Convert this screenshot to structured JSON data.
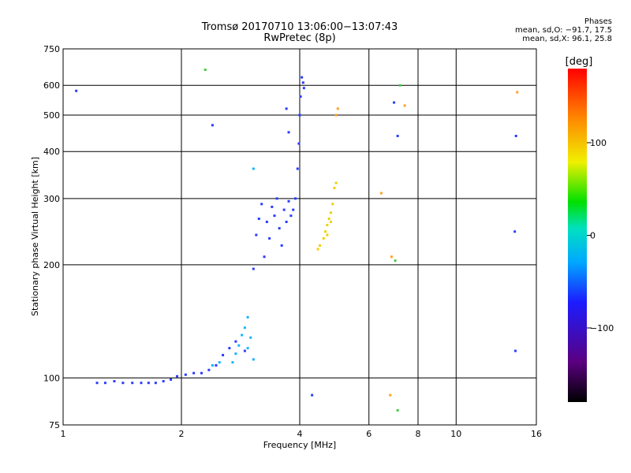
{
  "title": {
    "line1": "Tromsø 20170710 13:06:00−13:07:43",
    "line2": "RwPretec (8p)"
  },
  "phase_info": {
    "header": "Phases",
    "line_o": "mean, sd,O: −91.7, 17.5",
    "line_x": "mean, sd,X:  96.1, 25.8"
  },
  "colorbar": {
    "label": "[deg]",
    "ticks": [
      "100",
      "0",
      "−100"
    ],
    "tick_values": [
      100,
      0,
      -100
    ],
    "range": [
      -180,
      180
    ]
  },
  "chart_data": {
    "type": "scatter",
    "xlabel": "Frequency [MHz]",
    "ylabel": "Stationary phase Virtual Height [km]",
    "xscale": "log",
    "yscale": "log",
    "xlim": [
      1,
      16
    ],
    "ylim": [
      75,
      750
    ],
    "xticks": [
      1,
      2,
      4,
      6,
      8,
      10,
      16
    ],
    "xtick_labels": [
      "1",
      "2",
      "4",
      "6",
      "8",
      "10",
      "16"
    ],
    "yticks": [
      75,
      100,
      200,
      300,
      400,
      500,
      600,
      750
    ],
    "ytick_labels": [
      "75",
      "100",
      "200",
      "300",
      "400",
      "500",
      "600",
      "750"
    ],
    "grid": true,
    "series": [
      {
        "mode": "O",
        "color": "#2a3cff",
        "points": [
          [
            1.08,
            580
          ],
          [
            1.22,
            97
          ],
          [
            1.28,
            97
          ],
          [
            1.35,
            98
          ],
          [
            1.42,
            97
          ],
          [
            1.5,
            97
          ],
          [
            1.58,
            97
          ],
          [
            1.65,
            97
          ],
          [
            1.72,
            97
          ],
          [
            1.8,
            98
          ],
          [
            1.88,
            99
          ],
          [
            1.95,
            101
          ],
          [
            2.05,
            102
          ],
          [
            2.15,
            103
          ],
          [
            2.25,
            103
          ],
          [
            2.35,
            105
          ],
          [
            2.45,
            108
          ],
          [
            2.55,
            115
          ],
          [
            2.65,
            120
          ],
          [
            2.75,
            125
          ],
          [
            2.9,
            118
          ],
          [
            2.4,
            470
          ],
          [
            3.05,
            195
          ],
          [
            3.1,
            240
          ],
          [
            3.15,
            265
          ],
          [
            3.2,
            290
          ],
          [
            3.25,
            210
          ],
          [
            3.3,
            260
          ],
          [
            3.35,
            235
          ],
          [
            3.4,
            285
          ],
          [
            3.45,
            270
          ],
          [
            3.5,
            300
          ],
          [
            3.55,
            250
          ],
          [
            3.6,
            225
          ],
          [
            3.65,
            280
          ],
          [
            3.7,
            260
          ],
          [
            3.75,
            295
          ],
          [
            3.8,
            270
          ],
          [
            3.85,
            280
          ],
          [
            3.9,
            300
          ],
          [
            3.95,
            360
          ],
          [
            3.98,
            420
          ],
          [
            4.0,
            500
          ],
          [
            4.02,
            560
          ],
          [
            4.05,
            630
          ],
          [
            4.08,
            610
          ],
          [
            4.1,
            590
          ],
          [
            3.7,
            520
          ],
          [
            3.75,
            450
          ],
          [
            4.3,
            90
          ],
          [
            6.95,
            540
          ],
          [
            7.1,
            440
          ],
          [
            14.2,
            440
          ],
          [
            14.1,
            245
          ],
          [
            14.15,
            118
          ]
        ]
      },
      {
        "mode": "O-low",
        "color": "#14b4ff",
        "points": [
          [
            2.7,
            110
          ],
          [
            2.75,
            116
          ],
          [
            2.8,
            122
          ],
          [
            2.85,
            130
          ],
          [
            2.9,
            136
          ],
          [
            2.95,
            145
          ],
          [
            3.0,
            128
          ],
          [
            3.05,
            112
          ],
          [
            2.95,
            120
          ],
          [
            3.05,
            360
          ],
          [
            2.4,
            108
          ],
          [
            2.5,
            110
          ]
        ]
      },
      {
        "mode": "X",
        "color": "#f0d000",
        "points": [
          [
            4.45,
            220
          ],
          [
            4.5,
            225
          ],
          [
            4.6,
            235
          ],
          [
            4.65,
            245
          ],
          [
            4.7,
            255
          ],
          [
            4.75,
            265
          ],
          [
            4.8,
            275
          ],
          [
            4.85,
            290
          ],
          [
            4.9,
            320
          ],
          [
            4.95,
            330
          ],
          [
            4.7,
            240
          ],
          [
            4.8,
            260
          ]
        ]
      },
      {
        "mode": "X-far",
        "color": "#ffa020",
        "points": [
          [
            4.95,
            500
          ],
          [
            5.0,
            520
          ],
          [
            6.45,
            310
          ],
          [
            6.8,
            90
          ],
          [
            6.85,
            210
          ],
          [
            7.4,
            530
          ],
          [
            14.3,
            575
          ]
        ]
      },
      {
        "mode": "X-green",
        "color": "#44cc44",
        "points": [
          [
            2.3,
            660
          ],
          [
            7.2,
            600
          ],
          [
            7.0,
            205
          ],
          [
            7.1,
            82
          ]
        ]
      }
    ]
  }
}
